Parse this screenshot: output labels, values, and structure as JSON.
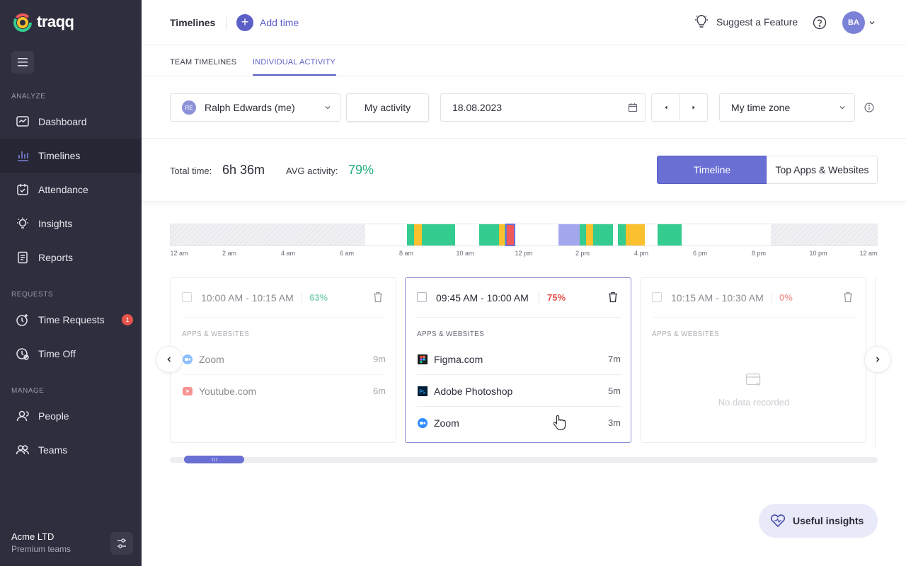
{
  "brand": {
    "name": "traqq"
  },
  "sidebar": {
    "sections": {
      "analyze": "ANALYZE",
      "requests": "REQUESTS",
      "manage": "MANAGE"
    },
    "items": [
      {
        "label": "Dashboard",
        "icon": "dashboard-icon"
      },
      {
        "label": "Timelines",
        "icon": "timelines-icon",
        "active": true
      },
      {
        "label": "Attendance",
        "icon": "attendance-icon"
      },
      {
        "label": "Insights",
        "icon": "insights-icon"
      },
      {
        "label": "Reports",
        "icon": "reports-icon"
      },
      {
        "label": "Time Requests",
        "icon": "time-requests-icon",
        "badge": "1"
      },
      {
        "label": "Time Off",
        "icon": "time-off-icon"
      },
      {
        "label": "People",
        "icon": "people-icon"
      },
      {
        "label": "Teams",
        "icon": "teams-icon"
      }
    ],
    "company": {
      "name": "Acme LTD",
      "plan": "Premium teams"
    }
  },
  "header": {
    "title": "Timelines",
    "add_time": "Add time",
    "suggest": "Suggest a Feature",
    "avatar": "BA"
  },
  "tabs": [
    {
      "label": "TEAM TIMELINES"
    },
    {
      "label": "INDIVIDUAL ACTIVITY",
      "active": true
    }
  ],
  "filters": {
    "user": {
      "initials": "RE",
      "value": "Ralph Edwards (me)"
    },
    "my_activity": "My activity",
    "date": "18.08.2023",
    "timezone": "My time zone"
  },
  "summary": {
    "total_label": "Total time:",
    "total_value": "6h 36m",
    "avg_label": "AVG activity:",
    "avg_value": "79%",
    "view_timeline": "Timeline",
    "view_top_apps": "Top Apps & Websites"
  },
  "timeline": {
    "ticks": [
      "12 am",
      "2 am",
      "4 am",
      "6 am",
      "8 am",
      "10 am",
      "12 pm",
      "2 pm",
      "4 pm",
      "6 pm",
      "8 pm",
      "10 pm",
      "12 am"
    ],
    "colors": {
      "green": "#34cc8f",
      "yellow": "#fbc02d",
      "purple": "#a4a6ee",
      "red": "#f0595a"
    }
  },
  "cards": [
    {
      "time": "10:00 AM - 10:15 AM",
      "activity": "63%",
      "activity_color": "#22b07d",
      "section": "APPS & WEBSITES",
      "apps": [
        {
          "name": "Zoom",
          "duration": "9m",
          "icon": "zoom-icon"
        },
        {
          "name": "Youtube.com",
          "duration": "6m",
          "icon": "youtube-icon"
        }
      ]
    },
    {
      "time": "09:45 AM - 10:00 AM",
      "activity": "75%",
      "activity_color": "#e5534b",
      "section": "APPS & WEBSITES",
      "apps": [
        {
          "name": "Figma.com",
          "duration": "7m",
          "icon": "figma-icon"
        },
        {
          "name": "Adobe Photoshop",
          "duration": "5m",
          "icon": "photoshop-icon"
        },
        {
          "name": "Zoom",
          "duration": "3m",
          "icon": "zoom-icon"
        }
      ]
    },
    {
      "time": "10:15 AM - 10:30 AM",
      "activity": "0%",
      "activity_color": "#e5534b",
      "section": "APPS & WEBSITES",
      "empty": "No data recorded"
    }
  ],
  "useful_insights": "Useful insights"
}
